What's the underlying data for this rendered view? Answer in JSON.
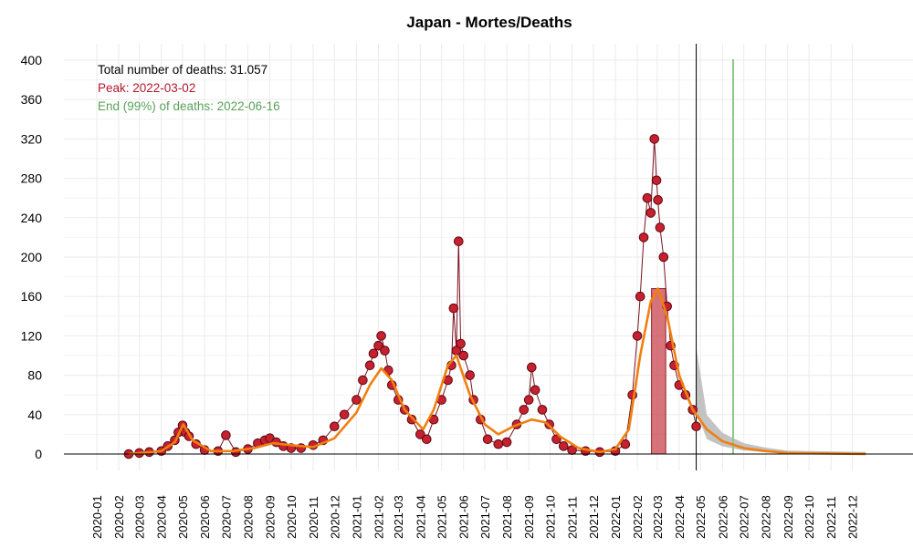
{
  "chart_data": {
    "type": "scatter",
    "title": "Japan - Mortes/Deaths",
    "xlabel": "",
    "ylabel": "",
    "ylim": [
      0,
      400
    ],
    "xlim": [
      "2020-01-01",
      "2022-12-31"
    ],
    "grid": true,
    "y_ticks": [
      "0",
      "40",
      "80",
      "120",
      "160",
      "200",
      "240",
      "280",
      "320",
      "360",
      "400"
    ],
    "x_ticks": [
      "2020-01",
      "2020-02",
      "2020-03",
      "2020-04",
      "2020-05",
      "2020-06",
      "2020-07",
      "2020-08",
      "2020-09",
      "2020-10",
      "2020-11",
      "2020-12",
      "2021-01",
      "2021-02",
      "2021-03",
      "2021-04",
      "2021-05",
      "2021-06",
      "2021-07",
      "2021-08",
      "2021-09",
      "2021-10",
      "2021-11",
      "2021-12",
      "2022-01",
      "2022-02",
      "2022-03",
      "2022-04",
      "2022-05",
      "2022-06",
      "2022-07",
      "2022-08",
      "2022-09",
      "2022-10",
      "2022-11",
      "2022-12"
    ],
    "annotations": [
      {
        "text": "Total number of deaths: 31.057",
        "color": "#000000"
      },
      {
        "text": "Peak: 2022-03-02",
        "color": "#b2182b"
      },
      {
        "text": "End (99%) of deaths: 2022-06-16",
        "color": "#5aa05a"
      }
    ],
    "current_date": "2022-04-25",
    "end_date": "2022-06-16",
    "peak_date": "2022-03-02",
    "peak_band": {
      "start": "2022-02-21",
      "end": "2022-03-13",
      "value": 168
    },
    "series": [
      {
        "kind": "daily_deaths",
        "color": "#b2182b",
        "points": [
          [
            "2020-02-15",
            0
          ],
          [
            "2020-03-01",
            1
          ],
          [
            "2020-03-15",
            2
          ],
          [
            "2020-04-01",
            3
          ],
          [
            "2020-04-10",
            8
          ],
          [
            "2020-04-20",
            14
          ],
          [
            "2020-04-25",
            22
          ],
          [
            "2020-05-01",
            29
          ],
          [
            "2020-05-05",
            22
          ],
          [
            "2020-05-10",
            18
          ],
          [
            "2020-05-20",
            10
          ],
          [
            "2020-06-01",
            4
          ],
          [
            "2020-06-20",
            3
          ],
          [
            "2020-07-01",
            19
          ],
          [
            "2020-07-15",
            2
          ],
          [
            "2020-08-01",
            5
          ],
          [
            "2020-08-15",
            11
          ],
          [
            "2020-08-25",
            14
          ],
          [
            "2020-09-01",
            16
          ],
          [
            "2020-09-10",
            12
          ],
          [
            "2020-09-20",
            8
          ],
          [
            "2020-10-01",
            6
          ],
          [
            "2020-10-15",
            6
          ],
          [
            "2020-11-01",
            9
          ],
          [
            "2020-11-15",
            14
          ],
          [
            "2020-12-01",
            28
          ],
          [
            "2020-12-15",
            40
          ],
          [
            "2021-01-01",
            55
          ],
          [
            "2021-01-10",
            75
          ],
          [
            "2021-01-20",
            90
          ],
          [
            "2021-01-25",
            102
          ],
          [
            "2021-02-01",
            110
          ],
          [
            "2021-02-05",
            120
          ],
          [
            "2021-02-10",
            105
          ],
          [
            "2021-02-15",
            85
          ],
          [
            "2021-02-20",
            70
          ],
          [
            "2021-03-01",
            55
          ],
          [
            "2021-03-10",
            45
          ],
          [
            "2021-03-20",
            35
          ],
          [
            "2021-04-01",
            20
          ],
          [
            "2021-04-10",
            15
          ],
          [
            "2021-04-20",
            35
          ],
          [
            "2021-05-01",
            55
          ],
          [
            "2021-05-10",
            75
          ],
          [
            "2021-05-15",
            90
          ],
          [
            "2021-05-18",
            148
          ],
          [
            "2021-05-22",
            105
          ],
          [
            "2021-05-25",
            216
          ],
          [
            "2021-05-28",
            112
          ],
          [
            "2021-06-01",
            100
          ],
          [
            "2021-06-10",
            80
          ],
          [
            "2021-06-15",
            55
          ],
          [
            "2021-06-25",
            35
          ],
          [
            "2021-07-05",
            15
          ],
          [
            "2021-07-20",
            10
          ],
          [
            "2021-08-01",
            12
          ],
          [
            "2021-08-15",
            30
          ],
          [
            "2021-08-25",
            45
          ],
          [
            "2021-09-01",
            55
          ],
          [
            "2021-09-05",
            88
          ],
          [
            "2021-09-10",
            65
          ],
          [
            "2021-09-20",
            45
          ],
          [
            "2021-09-30",
            30
          ],
          [
            "2021-10-10",
            15
          ],
          [
            "2021-10-20",
            8
          ],
          [
            "2021-11-01",
            4
          ],
          [
            "2021-11-20",
            3
          ],
          [
            "2021-12-10",
            2
          ],
          [
            "2022-01-01",
            3
          ],
          [
            "2022-01-15",
            10
          ],
          [
            "2022-01-25",
            60
          ],
          [
            "2022-02-01",
            120
          ],
          [
            "2022-02-05",
            160
          ],
          [
            "2022-02-10",
            220
          ],
          [
            "2022-02-15",
            260
          ],
          [
            "2022-02-20",
            245
          ],
          [
            "2022-02-25",
            320
          ],
          [
            "2022-02-28",
            278
          ],
          [
            "2022-03-02",
            258
          ],
          [
            "2022-03-05",
            230
          ],
          [
            "2022-03-10",
            200
          ],
          [
            "2022-03-15",
            150
          ],
          [
            "2022-03-20",
            110
          ],
          [
            "2022-03-25",
            90
          ],
          [
            "2022-04-01",
            70
          ],
          [
            "2022-04-10",
            60
          ],
          [
            "2022-04-20",
            45
          ],
          [
            "2022-04-25",
            28
          ]
        ]
      },
      {
        "kind": "smoothed_fit",
        "color": "#f07f0f",
        "points": [
          [
            "2020-02-15",
            0
          ],
          [
            "2020-04-01",
            3
          ],
          [
            "2020-04-20",
            12
          ],
          [
            "2020-05-02",
            30
          ],
          [
            "2020-05-15",
            14
          ],
          [
            "2020-06-10",
            3
          ],
          [
            "2020-07-10",
            3
          ],
          [
            "2020-08-10",
            6
          ],
          [
            "2020-09-05",
            11
          ],
          [
            "2020-10-01",
            9
          ],
          [
            "2020-11-01",
            7
          ],
          [
            "2020-12-01",
            16
          ],
          [
            "2021-01-01",
            42
          ],
          [
            "2021-01-20",
            70
          ],
          [
            "2021-02-05",
            87
          ],
          [
            "2021-02-20",
            75
          ],
          [
            "2021-03-10",
            45
          ],
          [
            "2021-04-05",
            25
          ],
          [
            "2021-04-20",
            45
          ],
          [
            "2021-05-10",
            90
          ],
          [
            "2021-05-22",
            100
          ],
          [
            "2021-06-10",
            60
          ],
          [
            "2021-07-01",
            30
          ],
          [
            "2021-07-20",
            20
          ],
          [
            "2021-08-10",
            28
          ],
          [
            "2021-09-05",
            35
          ],
          [
            "2021-09-25",
            32
          ],
          [
            "2021-10-15",
            18
          ],
          [
            "2021-11-10",
            6
          ],
          [
            "2021-12-10",
            2
          ],
          [
            "2022-01-01",
            5
          ],
          [
            "2022-01-20",
            25
          ],
          [
            "2022-02-05",
            100
          ],
          [
            "2022-02-20",
            155
          ],
          [
            "2022-03-02",
            168
          ],
          [
            "2022-03-15",
            140
          ],
          [
            "2022-04-01",
            80
          ],
          [
            "2022-04-20",
            45
          ],
          [
            "2022-05-10",
            25
          ],
          [
            "2022-06-01",
            13
          ],
          [
            "2022-07-01",
            6
          ],
          [
            "2022-08-01",
            3
          ],
          [
            "2022-09-01",
            1
          ],
          [
            "2022-12-20",
            0
          ]
        ]
      }
    ]
  }
}
